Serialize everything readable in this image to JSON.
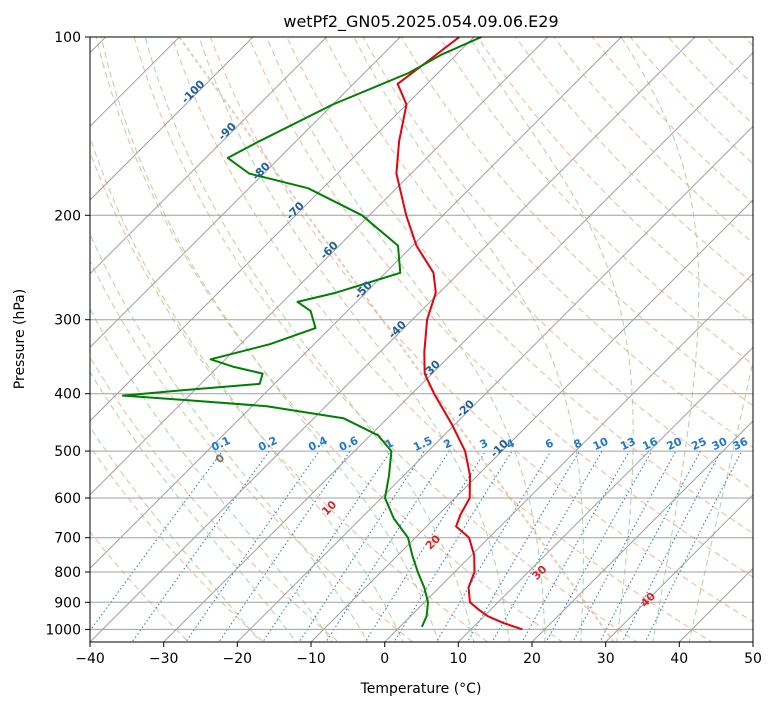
{
  "chart_data": {
    "type": "line",
    "subtype": "skew-T log-P diagram",
    "title": "wetPf2_GN05.2025.054.09.06.E29",
    "xlabel": "Temperature (°C)",
    "ylabel": "Pressure (hPa)",
    "xlim": [
      -40,
      50
    ],
    "ylim_hpa": [
      1050,
      100
    ],
    "y_scale": "log",
    "x_ticks": [
      "−40",
      "−30",
      "−20",
      "−10",
      "0",
      "10",
      "20",
      "30",
      "40",
      "50"
    ],
    "y_ticks": [
      "100",
      "200",
      "300",
      "400",
      "500",
      "600",
      "700",
      "800",
      "900",
      "1000"
    ],
    "grid": true,
    "colors": {
      "temperature": "#e8000b",
      "dewpoint": "#008000",
      "isotherm": "#a0a0a0",
      "isobar": "#a0a0a0",
      "dry_adiabat": "#f4a582",
      "moist_adiabat": "#8fcf8f",
      "mixing_ratio": "#1f77d4",
      "isotherm_label": "#1f5fa0",
      "dry_adiabat_label": "#d62728",
      "far_line": "#d8b89a"
    },
    "isotherm_labels": [
      {
        "temp": -100,
        "text": "-100"
      },
      {
        "temp": -90,
        "text": "-90"
      },
      {
        "temp": -80,
        "text": "-80"
      },
      {
        "temp": -70,
        "text": "-70"
      },
      {
        "temp": -60,
        "text": "-60"
      },
      {
        "temp": -50,
        "text": "-50"
      },
      {
        "temp": -40,
        "text": "-40"
      },
      {
        "temp": -30,
        "text": "-30"
      },
      {
        "temp": -20,
        "text": "-20"
      },
      {
        "temp": -10,
        "text": "-10"
      }
    ],
    "mixing_ratio_labels": [
      "0.1",
      "0.2",
      "0.4",
      "0.6",
      "1",
      "1.5",
      "2",
      "3",
      "4",
      "6",
      "8",
      "10",
      "13",
      "16",
      "20",
      "25",
      "30",
      "36"
    ],
    "dry_adiabat_labels": [
      {
        "theta_c": 0,
        "text": "0"
      },
      {
        "theta_c": 10,
        "text": "10"
      },
      {
        "theta_c": 20,
        "text": "20"
      },
      {
        "theta_c": 30,
        "text": "30"
      },
      {
        "theta_c": 40,
        "text": "40"
      }
    ],
    "series": [
      {
        "name": "Temperature",
        "points": [
          {
            "p": 1000,
            "t": 17.0
          },
          {
            "p": 975,
            "t": 13.5
          },
          {
            "p": 950,
            "t": 10.5
          },
          {
            "p": 925,
            "t": 8.3
          },
          {
            "p": 900,
            "t": 6.2
          },
          {
            "p": 850,
            "t": 4.0
          },
          {
            "p": 800,
            "t": 2.7
          },
          {
            "p": 750,
            "t": 0.4
          },
          {
            "p": 700,
            "t": -2.7
          },
          {
            "p": 670,
            "t": -6.0
          },
          {
            "p": 640,
            "t": -7.0
          },
          {
            "p": 600,
            "t": -8.0
          },
          {
            "p": 550,
            "t": -11.0
          },
          {
            "p": 500,
            "t": -15.0
          },
          {
            "p": 450,
            "t": -20.5
          },
          {
            "p": 400,
            "t": -27.0
          },
          {
            "p": 370,
            "t": -31.0
          },
          {
            "p": 340,
            "t": -34.0
          },
          {
            "p": 300,
            "t": -38.0
          },
          {
            "p": 270,
            "t": -40.5
          },
          {
            "p": 250,
            "t": -43.5
          },
          {
            "p": 225,
            "t": -49.5
          },
          {
            "p": 200,
            "t": -55.0
          },
          {
            "p": 170,
            "t": -62.0
          },
          {
            "p": 150,
            "t": -66.0
          },
          {
            "p": 130,
            "t": -70.0
          },
          {
            "p": 120,
            "t": -74.0
          },
          {
            "p": 110,
            "t": -73.0
          },
          {
            "p": 100,
            "t": -72.0
          }
        ]
      },
      {
        "name": "Dewpoint",
        "points": [
          {
            "p": 990,
            "t": 3.0
          },
          {
            "p": 950,
            "t": 2.2
          },
          {
            "p": 900,
            "t": 0.5
          },
          {
            "p": 850,
            "t": -2.0
          },
          {
            "p": 800,
            "t": -5.0
          },
          {
            "p": 750,
            "t": -8.0
          },
          {
            "p": 700,
            "t": -11.0
          },
          {
            "p": 650,
            "t": -15.5
          },
          {
            "p": 600,
            "t": -19.5
          },
          {
            "p": 550,
            "t": -22.0
          },
          {
            "p": 500,
            "t": -25.0
          },
          {
            "p": 470,
            "t": -29.0
          },
          {
            "p": 440,
            "t": -36.0
          },
          {
            "p": 420,
            "t": -48.0
          },
          {
            "p": 410,
            "t": -60.0
          },
          {
            "p": 403,
            "t": -69.0
          },
          {
            "p": 395,
            "t": -62.0
          },
          {
            "p": 385,
            "t": -52.0
          },
          {
            "p": 370,
            "t": -53.0
          },
          {
            "p": 360,
            "t": -58.0
          },
          {
            "p": 350,
            "t": -62.0
          },
          {
            "p": 330,
            "t": -56.0
          },
          {
            "p": 310,
            "t": -52.0
          },
          {
            "p": 290,
            "t": -55.0
          },
          {
            "p": 280,
            "t": -58.0
          },
          {
            "p": 270,
            "t": -54.0
          },
          {
            "p": 250,
            "t": -48.0
          },
          {
            "p": 225,
            "t": -52.0
          },
          {
            "p": 200,
            "t": -61.0
          },
          {
            "p": 180,
            "t": -72.0
          },
          {
            "p": 170,
            "t": -82.0
          },
          {
            "p": 160,
            "t": -87.0
          },
          {
            "p": 150,
            "t": -85.0
          },
          {
            "p": 130,
            "t": -80.0
          },
          {
            "p": 115,
            "t": -74.0
          },
          {
            "p": 107,
            "t": -72.0
          },
          {
            "p": 100,
            "t": -69.0
          }
        ]
      }
    ]
  }
}
